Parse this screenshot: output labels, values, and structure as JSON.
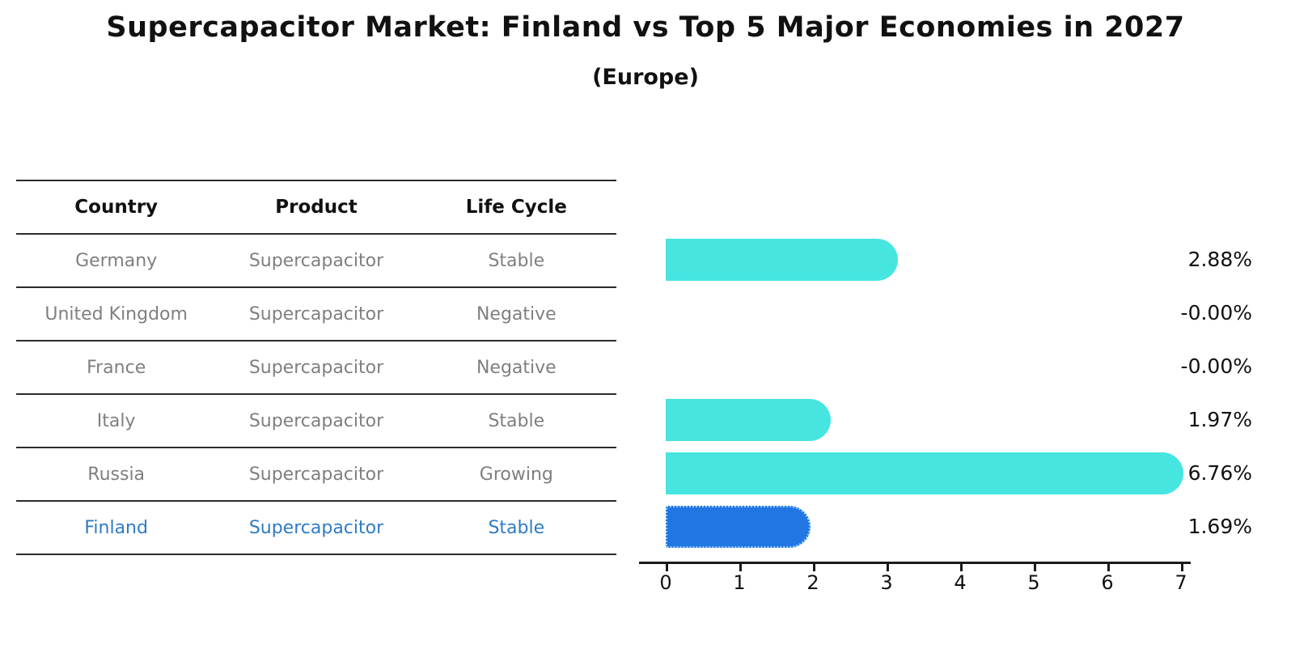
{
  "title": "Supercapacitor Market: Finland vs Top 5 Major Economies in 2027",
  "subtitle": "(Europe)",
  "table": {
    "headers": [
      "Country",
      "Product",
      "Life Cycle"
    ],
    "rows": [
      {
        "country": "Germany",
        "product": "Supercapacitor",
        "life_cycle": "Stable",
        "value_label": "2.88%",
        "highlight": false
      },
      {
        "country": "United Kingdom",
        "product": "Supercapacitor",
        "life_cycle": "Negative",
        "value_label": "-0.00%",
        "highlight": false
      },
      {
        "country": "France",
        "product": "Supercapacitor",
        "life_cycle": "Negative",
        "value_label": "-0.00%",
        "highlight": false
      },
      {
        "country": "Italy",
        "product": "Supercapacitor",
        "life_cycle": "Stable",
        "value_label": "1.97%",
        "highlight": false
      },
      {
        "country": "Russia",
        "product": "Supercapacitor",
        "life_cycle": "Growing",
        "value_label": "6.76%",
        "highlight": false
      },
      {
        "country": "Finland",
        "product": "Supercapacitor",
        "life_cycle": "Stable",
        "value_label": "1.69%",
        "highlight": true
      }
    ]
  },
  "chart_data": {
    "type": "bar",
    "orientation": "horizontal",
    "title": "Supercapacitor Market: Finland vs Top 5 Major Economies in 2027 (Europe)",
    "categories": [
      "Germany",
      "United Kingdom",
      "France",
      "Italy",
      "Russia",
      "Finland"
    ],
    "values": [
      2.88,
      -0.0,
      -0.0,
      1.97,
      6.76,
      1.69
    ],
    "value_labels": [
      "2.88%",
      "-0.00%",
      "-0.00%",
      "1.97%",
      "6.76%",
      "1.69%"
    ],
    "xlabel": "",
    "ylabel": "",
    "xlim": [
      0,
      7
    ],
    "x_ticks": [
      0,
      1,
      2,
      3,
      4,
      5,
      6,
      7
    ],
    "grid": false,
    "legend": false
  },
  "colors": {
    "bar_default": "#46e5e0",
    "bar_highlight": "#2176e4",
    "bar_highlight_border": "#9bd0f5",
    "highlight_text": "#2f7bc3",
    "row_text": "#7f7f7f",
    "heading_text": "#111111",
    "rule": "#2b2b2b"
  }
}
